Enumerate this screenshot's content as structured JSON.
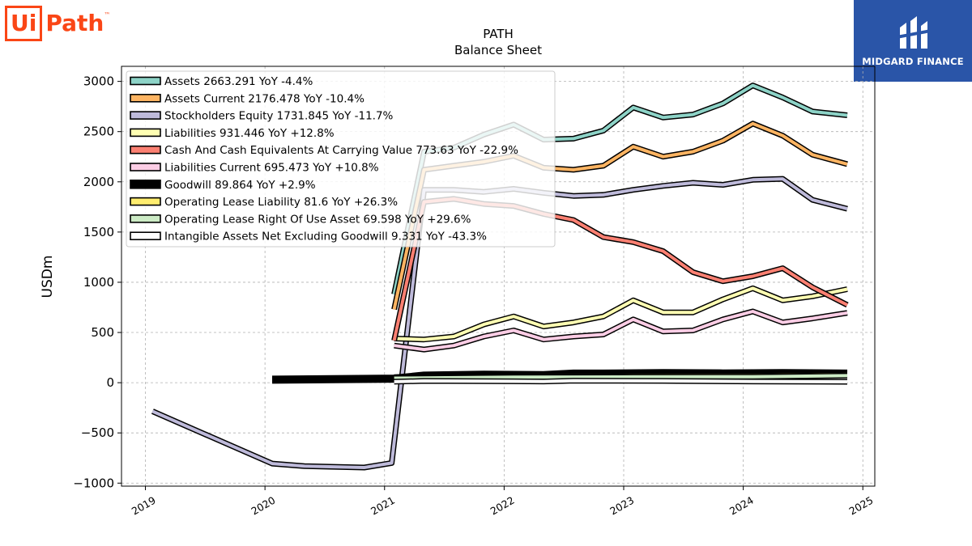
{
  "brand": {
    "left_logo_ui": "Ui",
    "left_logo_path": "Path",
    "left_logo_tm": "™",
    "right_logo_text": "MIDGARD FINANCE",
    "accent_orange": "#fa4616",
    "accent_blue": "#2a55a8"
  },
  "chart_data": {
    "type": "line",
    "title": "PATH",
    "subtitle": "Balance  Sheet",
    "xlabel": "",
    "ylabel": "USDm",
    "xlim": [
      2018.8,
      2025.1
    ],
    "ylim": [
      -1030,
      3150
    ],
    "x_ticks": [
      "2019",
      "2020",
      "2021",
      "2022",
      "2023",
      "2024",
      "2025"
    ],
    "y_ticks": [
      "3000",
      "2500",
      "2000",
      "1500",
      "1000",
      "500",
      "0",
      "−500",
      "−1000"
    ],
    "grid": true,
    "legend_position": "top-left",
    "x_common": [
      2021.08,
      2021.33,
      2021.58,
      2021.83,
      2022.08,
      2022.33,
      2022.58,
      2022.83,
      2023.08,
      2023.33,
      2023.58,
      2023.83,
      2024.08,
      2024.33,
      2024.58,
      2024.87
    ],
    "series": [
      {
        "name": "Assets",
        "label": "Assets  2663.291 YoY -4.4%",
        "color": "#8dd3c7",
        "values": [
          880,
          2300,
          2340,
          2470,
          2570,
          2420,
          2430,
          2510,
          2740,
          2640,
          2670,
          2780,
          2960,
          2840,
          2700,
          2663
        ]
      },
      {
        "name": "Assets Current",
        "label": "Assets Current  2176.478 YoY -10.4%",
        "color": "#fdb462",
        "values": [
          730,
          2120,
          2160,
          2200,
          2260,
          2140,
          2120,
          2160,
          2350,
          2250,
          2300,
          2410,
          2580,
          2460,
          2270,
          2176
        ]
      },
      {
        "name": "Stockholders Equity",
        "label": "Stockholders Equity  1731.845 YoY -11.7%",
        "color": "#bebada",
        "x": [
          2019.06,
          2020.06,
          2020.33,
          2020.83,
          2021.06,
          2021.33,
          2021.58,
          2021.83,
          2022.08,
          2022.33,
          2022.58,
          2022.83,
          2023.08,
          2023.33,
          2023.58,
          2023.83,
          2024.08,
          2024.33,
          2024.58,
          2024.87
        ],
        "values": [
          -285,
          -805,
          -830,
          -845,
          -800,
          1920,
          1920,
          1900,
          1930,
          1890,
          1860,
          1870,
          1920,
          1960,
          1990,
          1970,
          2020,
          2030,
          1820,
          1732
        ]
      },
      {
        "name": "Liabilities",
        "label": "Liabilities  931.446 YoY +12.8%",
        "color": "#ffffb3",
        "values": [
          440,
          430,
          460,
          580,
          660,
          560,
          600,
          660,
          820,
          700,
          700,
          830,
          940,
          820,
          860,
          931
        ]
      },
      {
        "name": "Cash And Cash Equivalents At Carrying Value",
        "label": "Cash And Cash Equivalents At Carrying Value  773.63 YoY -22.9%",
        "color": "#fb8072",
        "values": [
          420,
          1800,
          1830,
          1780,
          1760,
          1680,
          1620,
          1450,
          1400,
          1310,
          1100,
          1010,
          1060,
          1140,
          950,
          774
        ]
      },
      {
        "name": "Liabilities Current",
        "label": "Liabilities Current  695.473 YoY +10.8%",
        "color": "#fccde5",
        "values": [
          370,
          330,
          370,
          460,
          520,
          430,
          460,
          480,
          630,
          510,
          520,
          630,
          710,
          600,
          640,
          695
        ]
      },
      {
        "name": "Goodwill",
        "label": "Goodwill  89.864 YoY +2.9%",
        "color": "#000000",
        "x": [
          2020.06,
          2021.08,
          2021.33,
          2021.83,
          2022.33,
          2022.58,
          2022.83,
          2023.33,
          2023.83,
          2024.33,
          2024.87
        ],
        "values": [
          30,
          40,
          70,
          80,
          75,
          90,
          90,
          95,
          92,
          95,
          90
        ]
      },
      {
        "name": "Operating Lease Liability",
        "label": "Operating Lease Liability  81.6 YoY +26.3%",
        "color": "#ffed6f",
        "x": [
          2021.08,
          2022.08,
          2023.08,
          2024.08,
          2024.87
        ],
        "values": [
          55,
          65,
          70,
          72,
          82
        ]
      },
      {
        "name": "Operating Lease Right Of Use Asset",
        "label": "Operating Lease Right Of Use Asset  69.598 YoY +29.6%",
        "color": "#ccebc5",
        "x": [
          2021.08,
          2022.08,
          2023.08,
          2024.08,
          2024.87
        ],
        "values": [
          45,
          55,
          58,
          60,
          70
        ]
      },
      {
        "name": "Intangible Assets Net Excluding Goodwill",
        "label": "Intangible Assets Net Excluding Goodwill  9.331 YoY -43.3%",
        "color": "#ffffff",
        "x": [
          2021.08,
          2021.33,
          2022.33,
          2022.58,
          2023.33,
          2024.08,
          2024.87
        ],
        "values": [
          10,
          18,
          12,
          20,
          18,
          12,
          9
        ]
      }
    ]
  }
}
